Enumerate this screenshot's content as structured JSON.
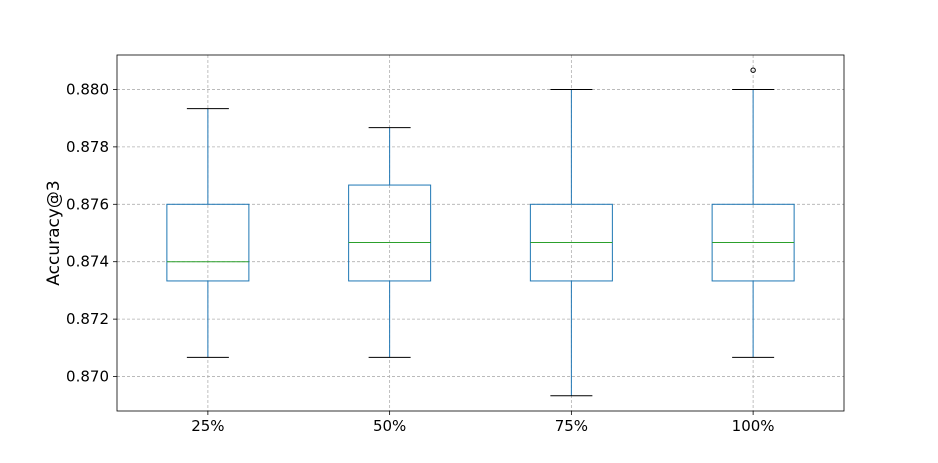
{
  "chart_data": {
    "type": "box",
    "title": "",
    "xlabel": "",
    "ylabel": "Accuracy@3",
    "ylim": [
      0.8688,
      0.8812
    ],
    "y_ticks": [
      0.87,
      0.872,
      0.874,
      0.876,
      0.878,
      0.88
    ],
    "y_tick_labels": [
      "0.870",
      "0.872",
      "0.874",
      "0.876",
      "0.878",
      "0.880"
    ],
    "categories": [
      "25%",
      "50%",
      "75%",
      "100%"
    ],
    "boxes": [
      {
        "whisker_low": 0.87067,
        "q1": 0.87333,
        "median": 0.874,
        "q3": 0.876,
        "whisker_high": 0.87933,
        "outliers": []
      },
      {
        "whisker_low": 0.87067,
        "q1": 0.87333,
        "median": 0.87467,
        "q3": 0.87667,
        "whisker_high": 0.87867,
        "outliers": []
      },
      {
        "whisker_low": 0.86933,
        "q1": 0.87333,
        "median": 0.87467,
        "q3": 0.876,
        "whisker_high": 0.88,
        "outliers": []
      },
      {
        "whisker_low": 0.87067,
        "q1": 0.87333,
        "median": 0.87467,
        "q3": 0.876,
        "whisker_high": 0.88,
        "outliers": [
          0.88067
        ]
      }
    ],
    "grid": true,
    "colors": {
      "box": "#1f77b4",
      "median": "#2ca02c",
      "whisker": "#1f77b4",
      "cap": "#000000",
      "grid": "#b0b0b0",
      "frame": "#000000"
    }
  }
}
